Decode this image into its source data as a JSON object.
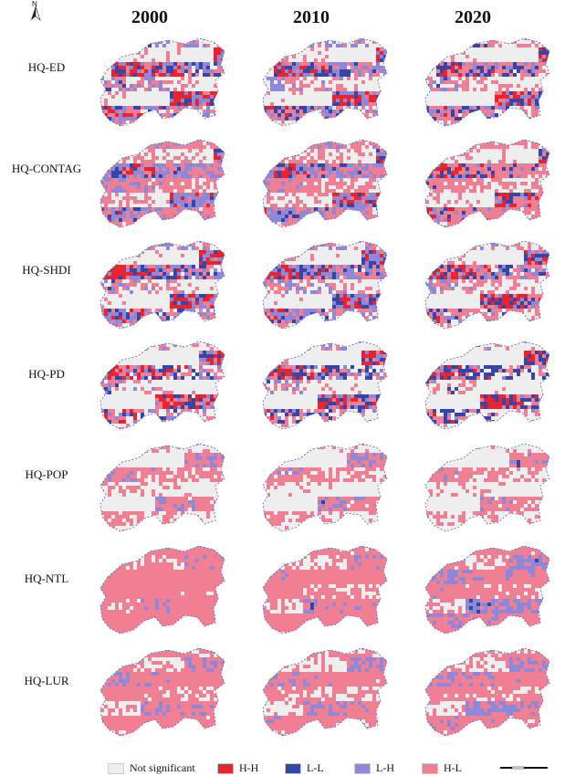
{
  "years": [
    "2000",
    "2010",
    "2020"
  ],
  "rows": [
    {
      "label": "HQ-ED",
      "mix": [
        [
          0.22,
          0.07,
          0.12,
          0.12
        ],
        [
          0.16,
          0.1,
          0.14,
          0.14
        ],
        [
          0.16,
          0.12,
          0.06,
          0.18
        ]
      ]
    },
    {
      "label": "HQ-CONTAG",
      "mix": [
        [
          0.14,
          0.06,
          0.18,
          0.3
        ],
        [
          0.16,
          0.08,
          0.14,
          0.3
        ],
        [
          0.18,
          0.08,
          0.04,
          0.3
        ]
      ]
    },
    {
      "label": "HQ-SHDI",
      "mix": [
        [
          0.22,
          0.07,
          0.14,
          0.12
        ],
        [
          0.18,
          0.1,
          0.14,
          0.14
        ],
        [
          0.18,
          0.1,
          0.08,
          0.16
        ]
      ]
    },
    {
      "label": "HQ-PD",
      "mix": [
        [
          0.24,
          0.06,
          0.06,
          0.1
        ],
        [
          0.2,
          0.12,
          0.06,
          0.1
        ],
        [
          0.2,
          0.14,
          0.02,
          0.1
        ]
      ]
    },
    {
      "label": "HQ-POP",
      "mix": [
        [
          0.0,
          0.03,
          0.12,
          0.32
        ],
        [
          0.0,
          0.03,
          0.12,
          0.3
        ],
        [
          0.0,
          0.03,
          0.1,
          0.3
        ]
      ]
    },
    {
      "label": "HQ-NTL",
      "mix": [
        [
          0.0,
          0.0,
          0.1,
          0.72
        ],
        [
          0.0,
          0.01,
          0.14,
          0.58
        ],
        [
          0.0,
          0.05,
          0.28,
          0.44
        ]
      ]
    },
    {
      "label": "HQ-LUR",
      "mix": [
        [
          0.0,
          0.0,
          0.22,
          0.52
        ],
        [
          0.0,
          0.01,
          0.2,
          0.46
        ],
        [
          0.0,
          0.03,
          0.26,
          0.42
        ]
      ]
    }
  ],
  "legend": [
    {
      "key": "ns",
      "label": "Not significant",
      "color": "#eeeeee"
    },
    {
      "key": "hh",
      "label": "H-H",
      "color": "#e8242f"
    },
    {
      "key": "ll",
      "label": "L-L",
      "color": "#3546a8"
    },
    {
      "key": "lh",
      "label": "L-H",
      "color": "#8f88d8"
    },
    {
      "key": "hl",
      "label": "H-L",
      "color": "#f17f93"
    }
  ],
  "north_label": "N"
}
